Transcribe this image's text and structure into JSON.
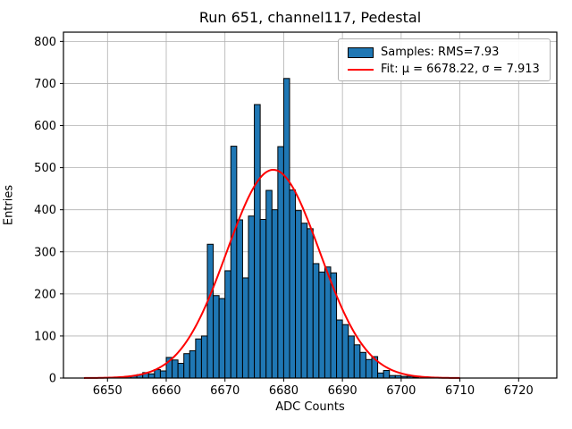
{
  "title": "Run 651, channel117, Pedestal",
  "chart_data": {
    "type": "bar",
    "title": "Run 651, channel117, Pedestal",
    "xlabel": "ADC Counts",
    "ylabel": "Entries",
    "grid": true,
    "xlim": [
      6642.5,
      6726.5
    ],
    "ylim": [
      0,
      822
    ],
    "xticks": [
      6650,
      6660,
      6670,
      6680,
      6690,
      6700,
      6710,
      6720
    ],
    "yticks": [
      0,
      100,
      200,
      300,
      400,
      500,
      600,
      700,
      800
    ],
    "bin_width": 1,
    "bin_start": 6651,
    "counts": [
      2,
      3,
      4,
      5,
      8,
      13,
      10,
      20,
      17,
      49,
      43,
      35,
      58,
      65,
      93,
      100,
      318,
      196,
      189,
      255,
      551,
      376,
      238,
      385,
      650,
      377,
      446,
      400,
      550,
      712,
      447,
      398,
      368,
      355,
      272,
      252,
      264,
      250,
      138,
      127,
      100,
      79,
      61,
      44,
      51,
      12,
      18,
      6,
      6,
      4,
      4,
      2
    ],
    "fit": {
      "mu": 6678.22,
      "sigma": 7.913,
      "peak": 495,
      "x_start": 6646,
      "x_end": 6710
    },
    "colors": {
      "bar": "#1f77b4",
      "bar_edge": "#000000",
      "fit": "#ff0000",
      "grid": "#b0b0b0",
      "axis": "#000000"
    },
    "legend_position": "upper right"
  },
  "legend": {
    "entries": [
      {
        "label": "Samples: RMS=7.93",
        "swatch": "bar",
        "color": "#1f77b4"
      },
      {
        "label": "Fit: μ = 6678.22, σ = 7.913",
        "swatch": "line",
        "color": "#ff0000"
      }
    ]
  }
}
